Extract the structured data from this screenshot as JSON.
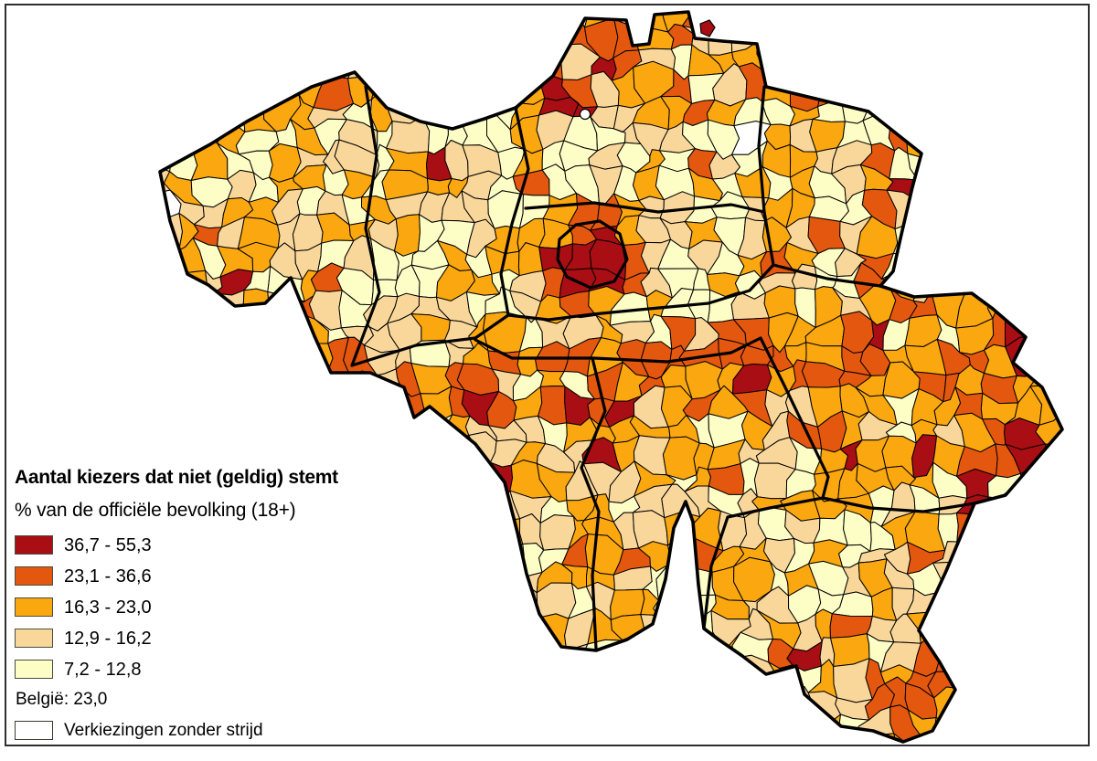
{
  "figure": {
    "type": "choropleth-map"
  },
  "legend": {
    "title": "Aantal kiezers dat niet (geldig) stemt",
    "subtitle": "% van de officiële bevolking (18+)",
    "classes": [
      {
        "label": "36,7 - 55,3",
        "color": "#a80e13"
      },
      {
        "label": "23,1 - 36,6",
        "color": "#e4570f"
      },
      {
        "label": "16,3 - 23,0",
        "color": "#fba70f"
      },
      {
        "label": "12,9 - 16,2",
        "color": "#f9d79b"
      },
      {
        "label": "7,2 - 12,8",
        "color": "#fdfdc6"
      }
    ],
    "national_value_label": "België: 23,0",
    "special_class": {
      "label": "Verkiezingen zonder strijd",
      "color": "#ffffff"
    }
  },
  "map": {
    "municipality_border_color": "#000000",
    "province_border_color": "#000000",
    "background_color": "#ffffff"
  }
}
